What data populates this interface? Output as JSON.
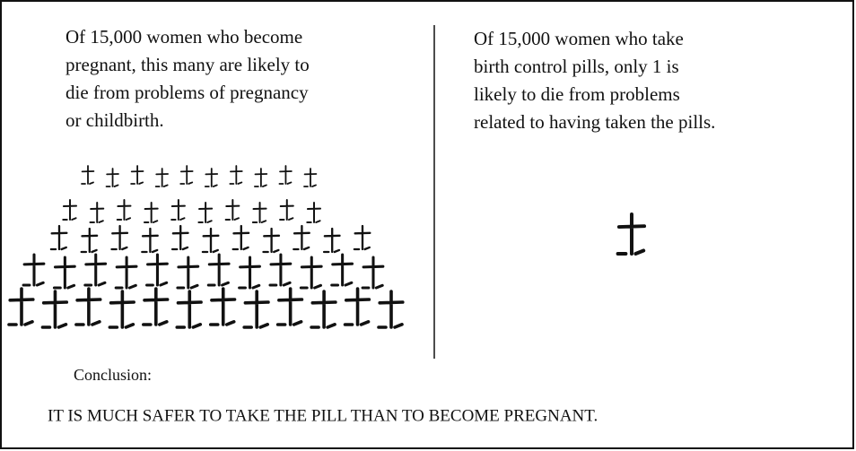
{
  "left": {
    "lines": [
      "Of 15,000 women who become",
      "pregnant, this many are likely to",
      "die from problems of pregnancy",
      "or childbirth."
    ]
  },
  "right": {
    "lines": [
      "Of 15,000 women who take",
      "birth control pills, only 1 is",
      "likely to die from problems",
      "related to having taken the pills."
    ]
  },
  "conclusion": {
    "label": "Conclusion:",
    "text": "IT IS MUCH SAFER TO TAKE THE PILL THAN TO BECOME PREGNANT."
  }
}
